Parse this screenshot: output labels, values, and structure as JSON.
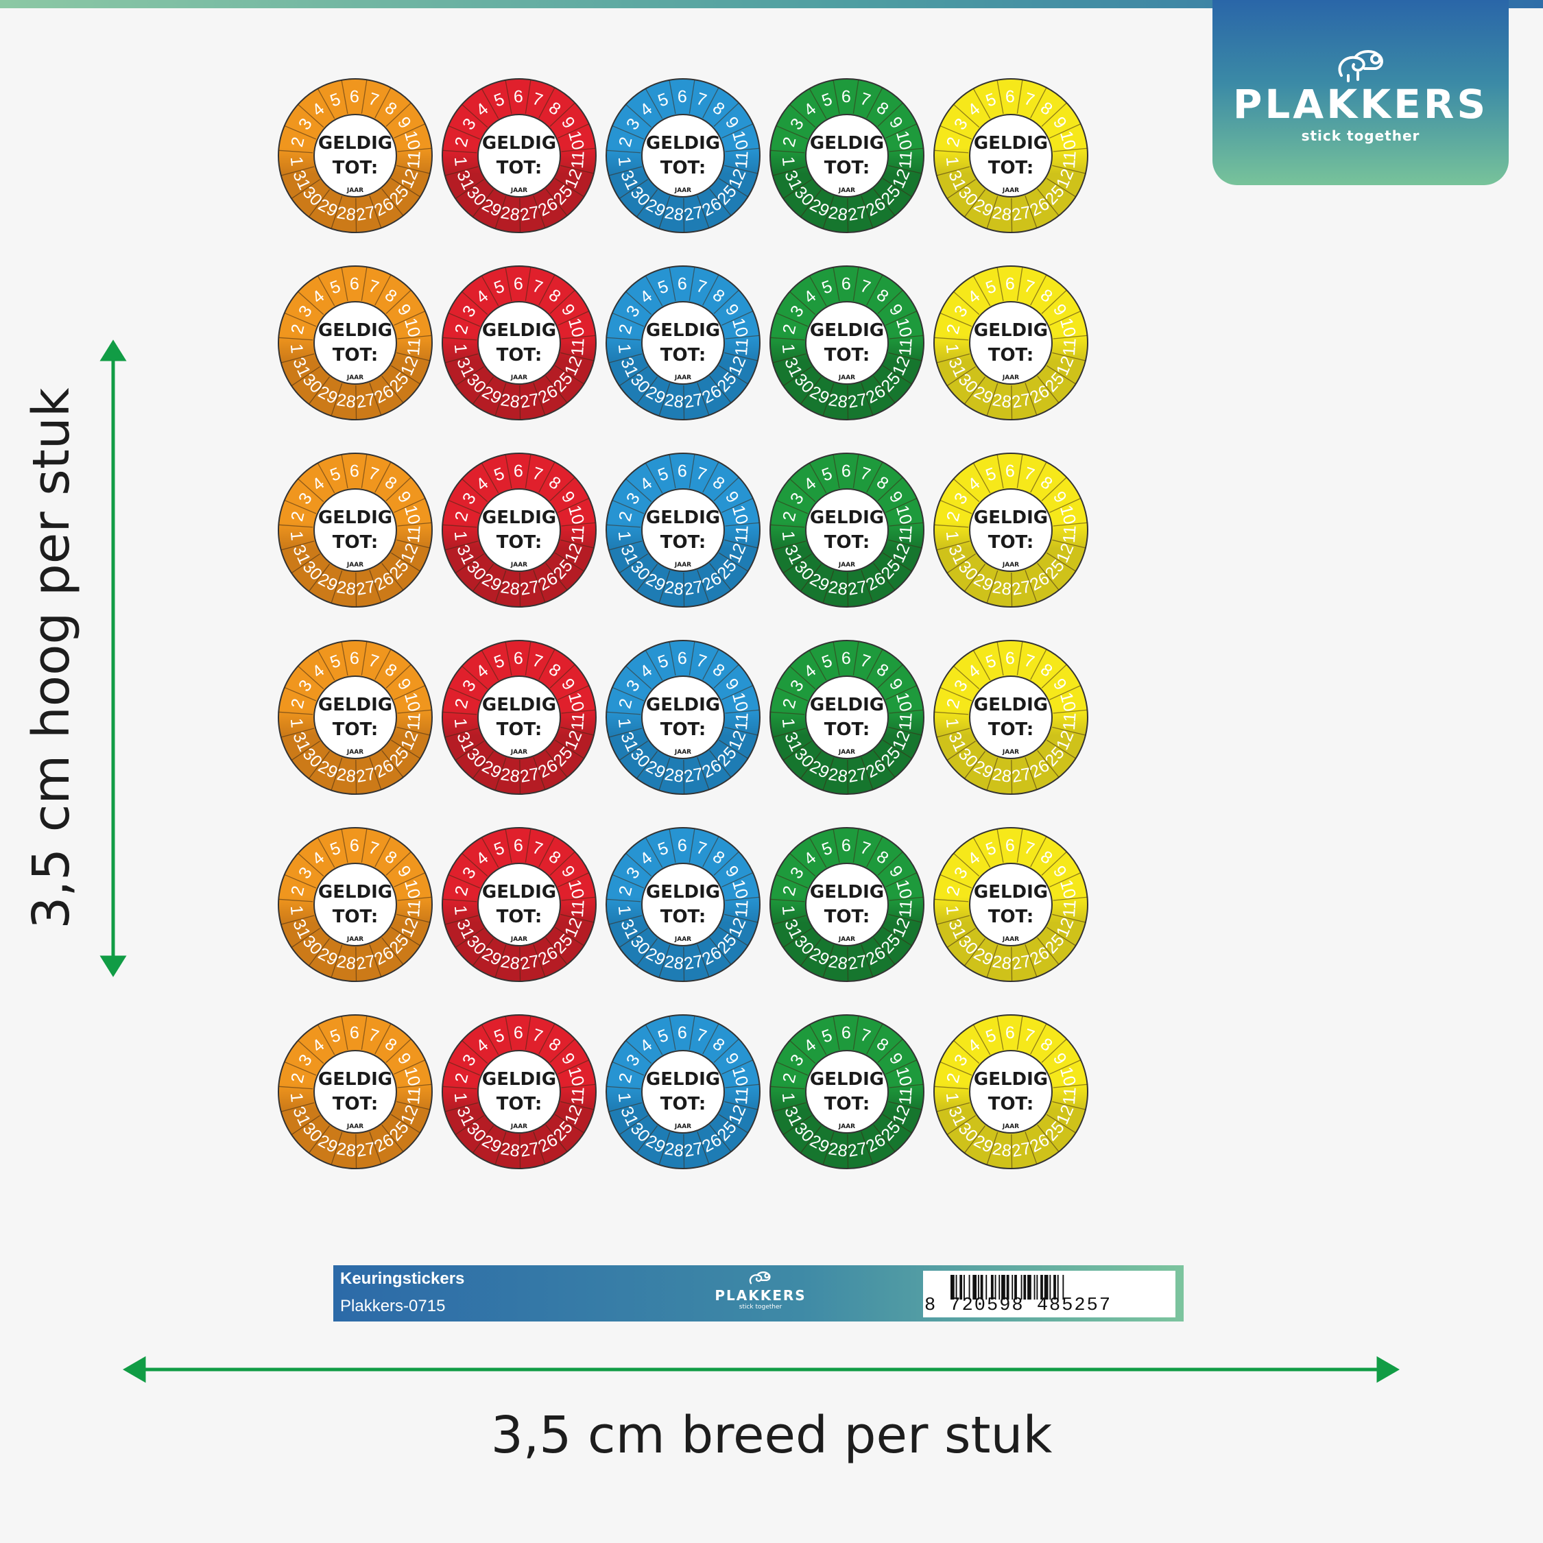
{
  "brand": {
    "name": "PLAKKERS",
    "tagline": "stick together",
    "gradient_colors": [
      "#2a66a8",
      "#3b8aa6",
      "#78c39a"
    ]
  },
  "dimensions": {
    "height_label": "3,5 cm hoog per stuk",
    "width_label": "3,5 cm breed per stuk",
    "arrow_color": "#119c45"
  },
  "sticker": {
    "title_line1": "GELDIG",
    "title_line2": "TOT:",
    "year_label": "JAAR",
    "numbers": [
      "1",
      "2",
      "3",
      "4",
      "5",
      "6",
      "7",
      "8",
      "9",
      "10",
      "11",
      "12",
      "25",
      "26",
      "27",
      "28",
      "29",
      "30",
      "31"
    ],
    "colors": [
      {
        "name": "orange",
        "light": "#f0961e",
        "dark": "#cc7a18"
      },
      {
        "name": "red",
        "light": "#e0202c",
        "dark": "#b51c24"
      },
      {
        "name": "blue",
        "light": "#2794d2",
        "dark": "#1e7cb4"
      },
      {
        "name": "green",
        "light": "#1e9a3c",
        "dark": "#16762e"
      },
      {
        "name": "yellow",
        "light": "#f6e81a",
        "dark": "#cfc21a"
      }
    ],
    "rows": 6,
    "columns": 5
  },
  "sheet_footer": {
    "product_title": "Keuringstickers",
    "product_code": "Plakkers-0715",
    "logo_name": "PLAKKERS",
    "logo_tagline": "stick together",
    "barcode_digits": "8 720598 485257"
  }
}
